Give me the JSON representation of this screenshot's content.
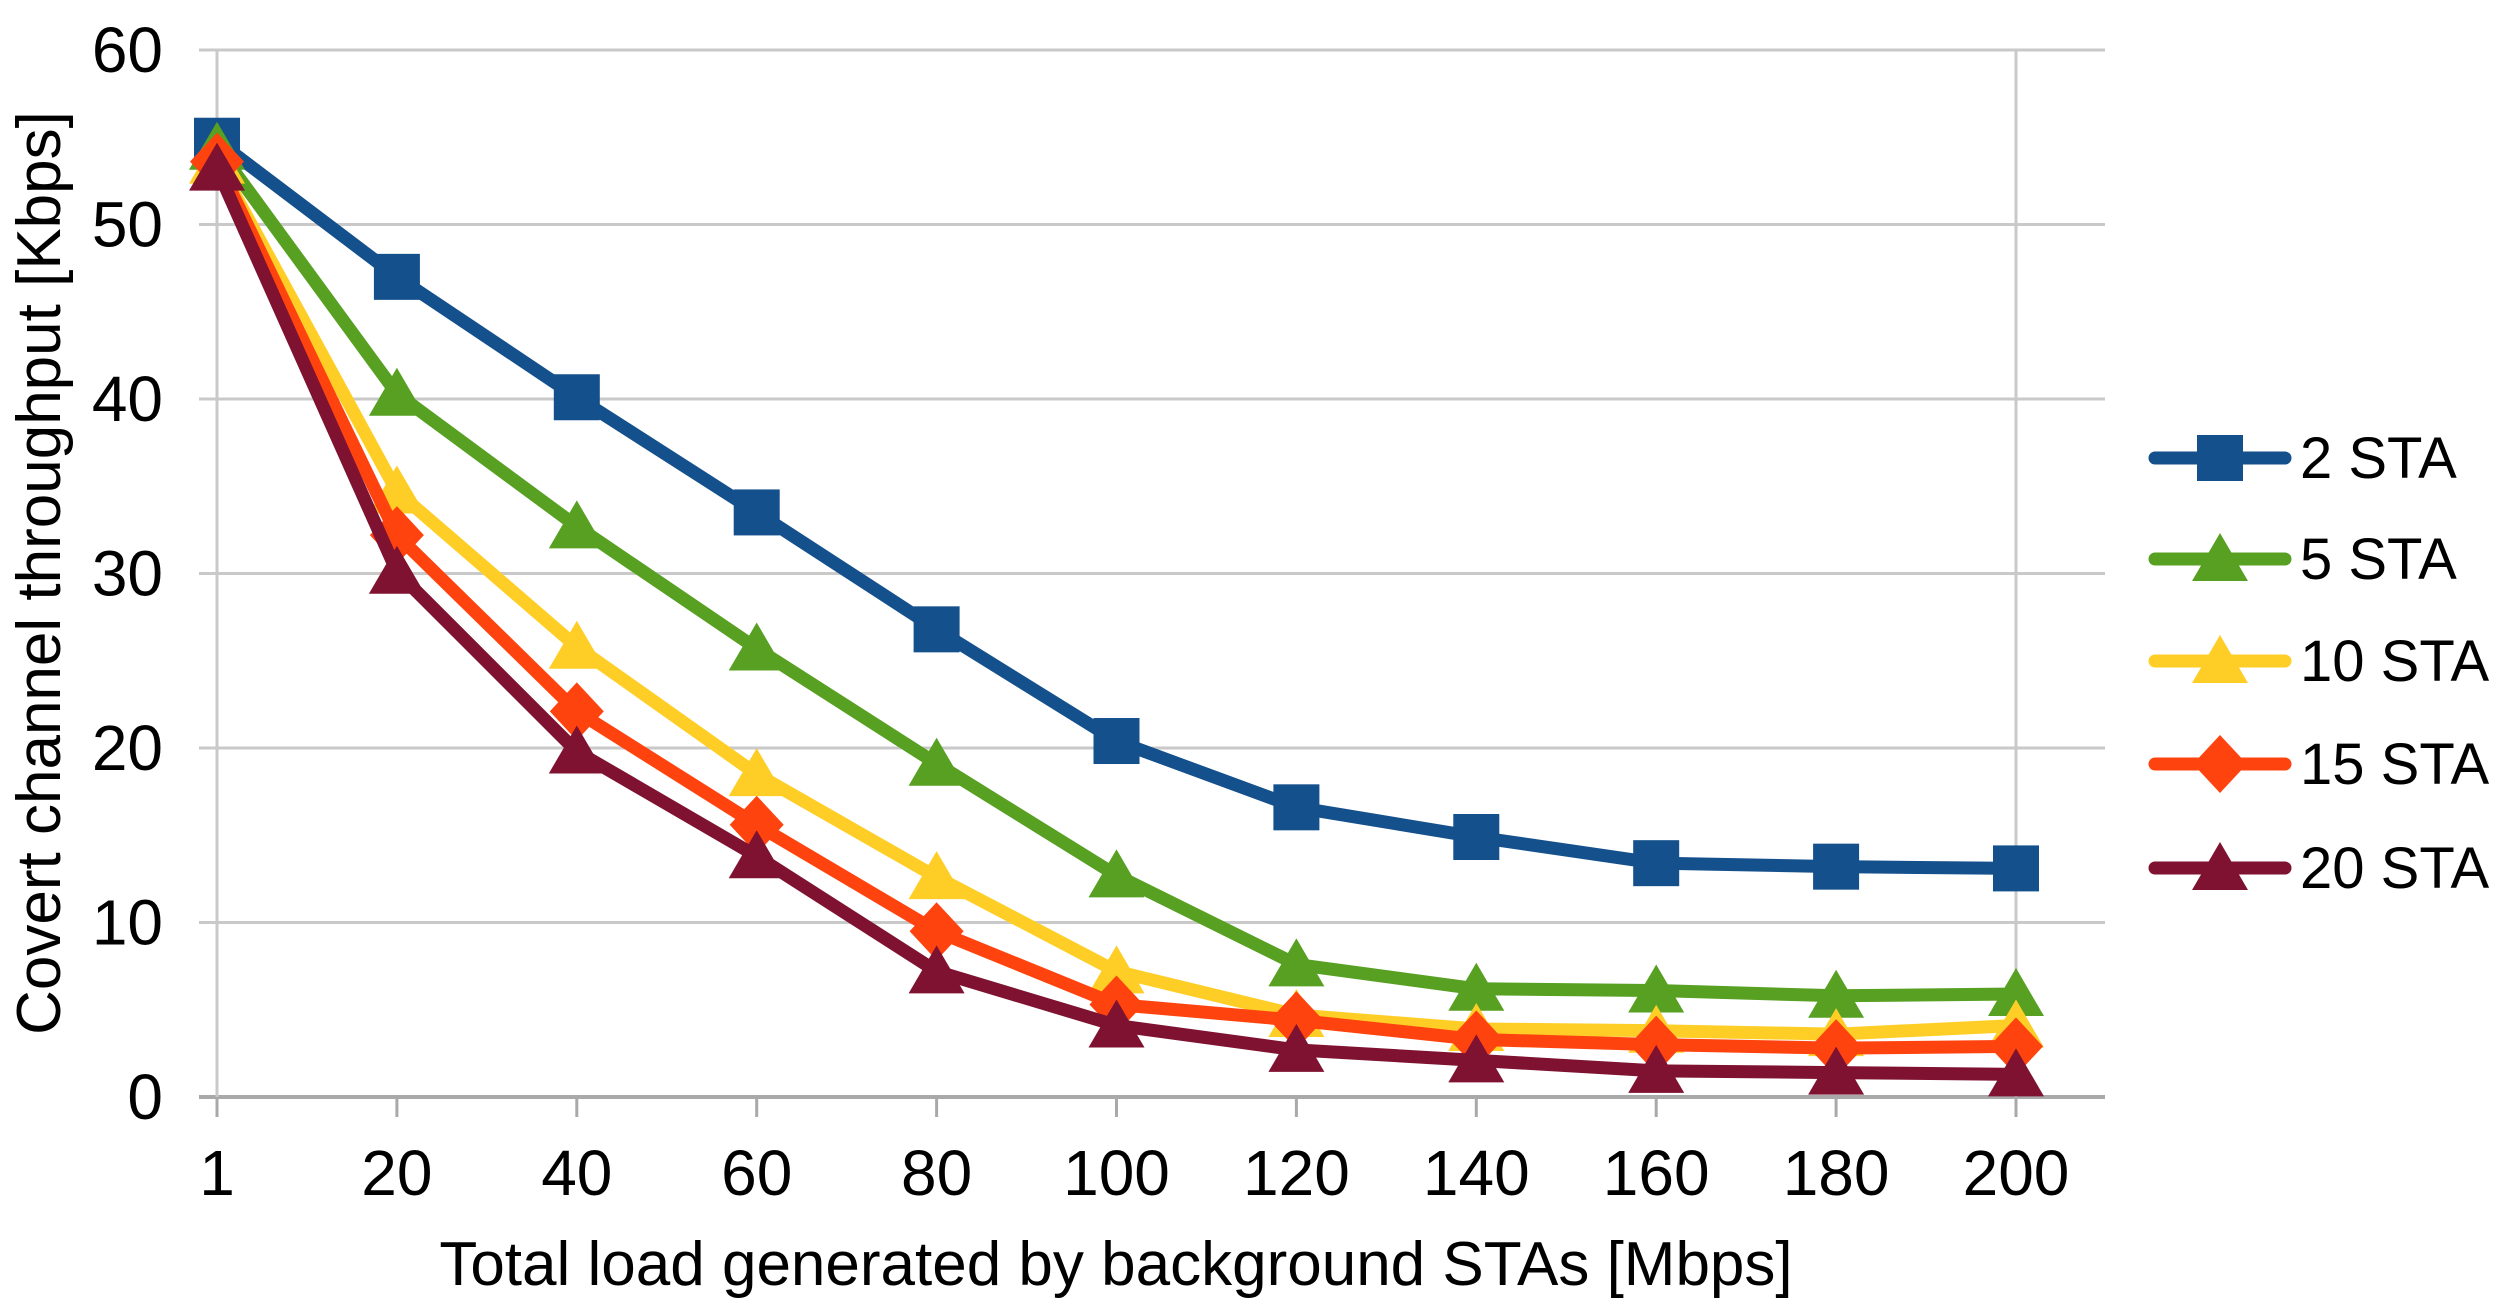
{
  "chart_data": {
    "type": "line",
    "title": "",
    "xlabel": "Total load generated by background STAs [Mbps]",
    "ylabel": "Covert channel throughput [Kbps]",
    "categories": [
      "1",
      "20",
      "40",
      "60",
      "80",
      "100",
      "120",
      "140",
      "160",
      "180",
      "200"
    ],
    "x": [
      1,
      20,
      40,
      60,
      80,
      100,
      120,
      140,
      160,
      180,
      200
    ],
    "yticks": [
      0,
      10,
      20,
      30,
      40,
      50,
      60
    ],
    "ylim": [
      0,
      60
    ],
    "grid": "horizontal",
    "legend_position": "right",
    "series": [
      {
        "name": "2 STA",
        "color": "#14508C",
        "marker": "square",
        "values": [
          54.8,
          47.0,
          40.1,
          33.5,
          26.8,
          20.4,
          16.6,
          14.9,
          13.4,
          13.2,
          13.1
        ]
      },
      {
        "name": "5 STA",
        "color": "#57A022",
        "marker": "triangle",
        "values": [
          54.4,
          40.3,
          32.7,
          25.7,
          19.1,
          12.7,
          7.6,
          6.2,
          6.1,
          5.8,
          5.9
        ]
      },
      {
        "name": "10 STA",
        "color": "#FFCE26",
        "marker": "triangle",
        "values": [
          53.6,
          34.7,
          25.8,
          18.5,
          12.6,
          7.2,
          4.7,
          3.9,
          3.8,
          3.6,
          4.1
        ]
      },
      {
        "name": "15 STA",
        "color": "#FF430F",
        "marker": "diamond",
        "values": [
          53.6,
          32.2,
          22.1,
          15.6,
          9.5,
          5.3,
          4.4,
          3.3,
          3.0,
          2.8,
          2.9
        ]
      },
      {
        "name": "20 STA",
        "color": "#7E1230",
        "marker": "triangle",
        "values": [
          53.2,
          30.1,
          19.8,
          13.8,
          7.2,
          4.1,
          2.7,
          2.1,
          1.5,
          1.4,
          1.3
        ]
      }
    ]
  },
  "colors": {
    "background": "#FFFFFF",
    "gridline": "#C9C9C9",
    "axis": "#A9A9A9",
    "text": "#000000"
  }
}
